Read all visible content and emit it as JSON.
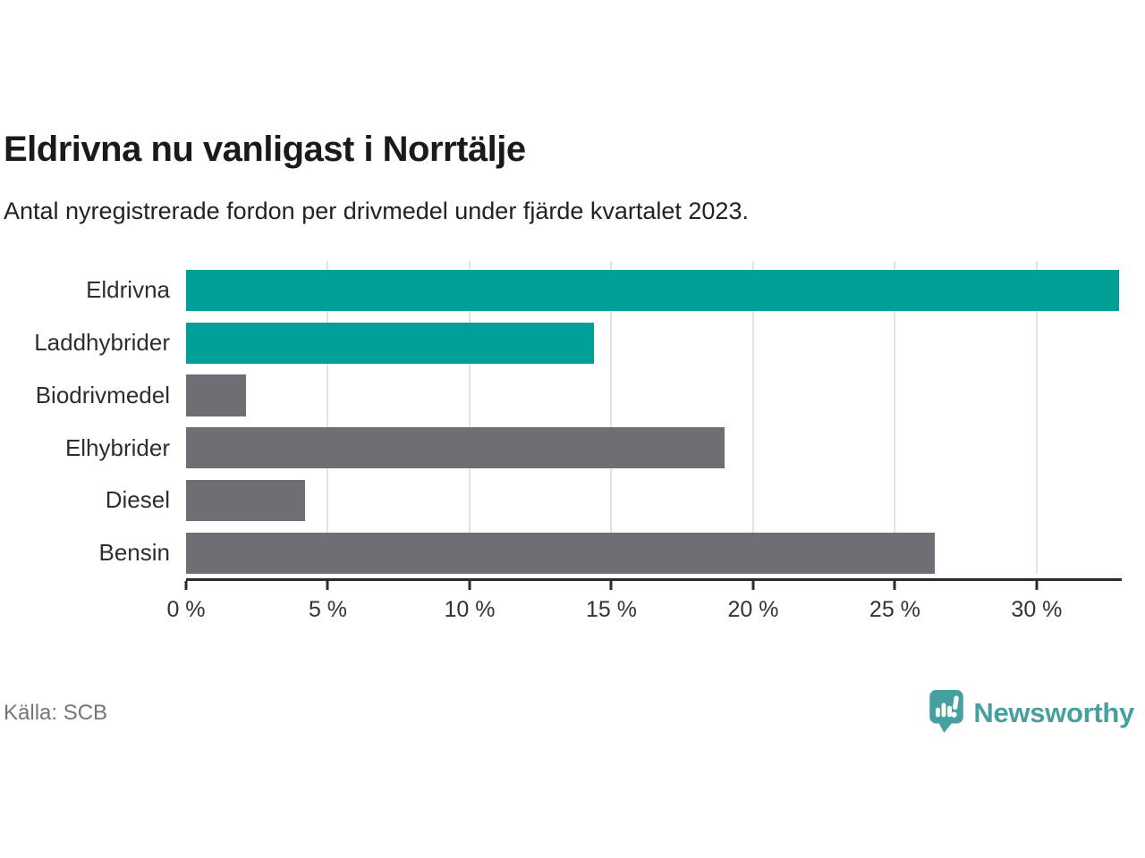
{
  "page": {
    "title": "Eldrivna nu vanligast i Norrtälje",
    "subtitle": "Antal nyregistrerade fordon per drivmedel under fjärde kvartalet 2023.",
    "source": "Källa: SCB",
    "brand_name": "Newsworthy"
  },
  "colors": {
    "accent_teal": "#00a099",
    "neutral_gray": "#6e6e73",
    "brand_teal": "#47a0a0",
    "gridline": "#e2e2e2",
    "axis": "#2b2b2b"
  },
  "chart_data": {
    "type": "bar",
    "orientation": "horizontal",
    "title": "Eldrivna nu vanligast i Norrtälje",
    "subtitle": "Antal nyregistrerade fordon per drivmedel under fjärde kvartalet 2023.",
    "categories": [
      "Eldrivna",
      "Laddhybrider",
      "Biodrivmedel",
      "Elhybrider",
      "Diesel",
      "Bensin"
    ],
    "values": [
      32.9,
      14.4,
      2.1,
      19.0,
      4.2,
      26.4
    ],
    "bar_colors": [
      "#00a099",
      "#00a099",
      "#6e6e73",
      "#6e6e73",
      "#6e6e73",
      "#6e6e73"
    ],
    "unit": "%",
    "xlim": [
      0,
      33
    ],
    "x_ticks": [
      0,
      5,
      10,
      15,
      20,
      25,
      30
    ],
    "x_tick_labels": [
      "0 %",
      "5 %",
      "10 %",
      "15 %",
      "20 %",
      "25 %",
      "30 %"
    ],
    "grid": "vertical",
    "legend": "none",
    "source": "Källa: SCB"
  }
}
